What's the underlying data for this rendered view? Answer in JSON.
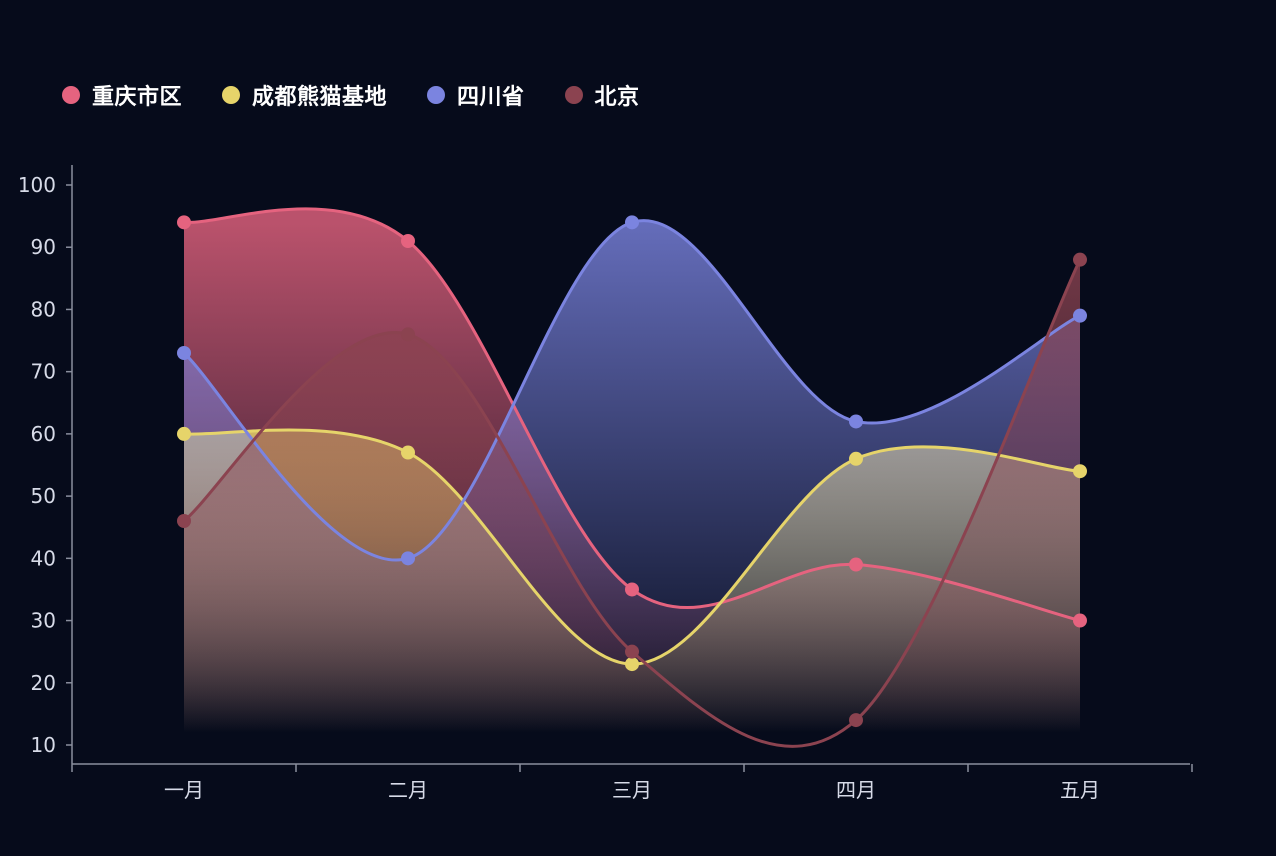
{
  "chart_data": {
    "type": "area",
    "categories": [
      "一月",
      "二月",
      "三月",
      "四月",
      "五月"
    ],
    "series": [
      {
        "name": "重庆市区",
        "color": "#e5637f",
        "values": [
          94,
          91,
          35,
          39,
          30
        ]
      },
      {
        "name": "成都熊猫基地",
        "color": "#e6d46a",
        "values": [
          60,
          57,
          23,
          56,
          54
        ]
      },
      {
        "name": "四川省",
        "color": "#7b84e0",
        "values": [
          73,
          40,
          94,
          62,
          79
        ]
      },
      {
        "name": "北京",
        "color": "#8b4350",
        "values": [
          46,
          76,
          25,
          14,
          88
        ]
      }
    ],
    "y_ticks": [
      10,
      20,
      30,
      40,
      50,
      60,
      70,
      80,
      90,
      100
    ],
    "ylim": [
      7,
      103
    ],
    "smooth": true,
    "gradient_fill": true,
    "legend_position": "top-left",
    "grid": false
  },
  "colors": {
    "background": "#060b1b",
    "axis": "#8a8f9e",
    "tick_text": "#d7dbe8",
    "legend_text": "#ffffff"
  }
}
